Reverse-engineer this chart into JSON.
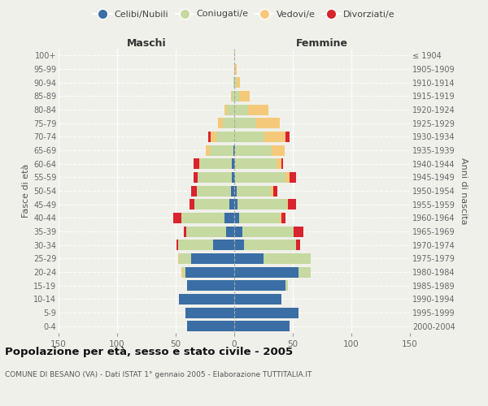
{
  "age_groups": [
    "0-4",
    "5-9",
    "10-14",
    "15-19",
    "20-24",
    "25-29",
    "30-34",
    "35-39",
    "40-44",
    "45-49",
    "50-54",
    "55-59",
    "60-64",
    "65-69",
    "70-74",
    "75-79",
    "80-84",
    "85-89",
    "90-94",
    "95-99",
    "100+"
  ],
  "birth_years": [
    "2000-2004",
    "1995-1999",
    "1990-1994",
    "1985-1989",
    "1980-1984",
    "1975-1979",
    "1970-1974",
    "1965-1969",
    "1960-1964",
    "1955-1959",
    "1950-1954",
    "1945-1949",
    "1940-1944",
    "1935-1939",
    "1930-1934",
    "1925-1929",
    "1920-1924",
    "1915-1919",
    "1910-1914",
    "1905-1909",
    "≤ 1904"
  ],
  "male": {
    "celibe": [
      40,
      42,
      47,
      40,
      42,
      37,
      18,
      7,
      8,
      4,
      3,
      2,
      2,
      1,
      0,
      0,
      0,
      0,
      0,
      0,
      0
    ],
    "coniugato": [
      0,
      0,
      0,
      0,
      2,
      10,
      30,
      34,
      37,
      30,
      29,
      29,
      27,
      20,
      15,
      10,
      6,
      2,
      1,
      0,
      0
    ],
    "vedovo": [
      0,
      0,
      0,
      0,
      1,
      1,
      0,
      0,
      0,
      0,
      0,
      0,
      1,
      3,
      5,
      4,
      2,
      1,
      0,
      0,
      0
    ],
    "divorziato": [
      0,
      0,
      0,
      0,
      0,
      0,
      1,
      2,
      7,
      4,
      5,
      4,
      5,
      0,
      2,
      0,
      0,
      0,
      0,
      0,
      0
    ]
  },
  "female": {
    "nubile": [
      47,
      55,
      40,
      44,
      55,
      25,
      8,
      7,
      4,
      3,
      2,
      1,
      1,
      1,
      0,
      0,
      0,
      0,
      0,
      0,
      0
    ],
    "coniugata": [
      0,
      0,
      0,
      2,
      10,
      40,
      45,
      44,
      35,
      42,
      29,
      43,
      35,
      31,
      26,
      19,
      12,
      4,
      2,
      1,
      0
    ],
    "vedova": [
      0,
      0,
      0,
      0,
      0,
      0,
      0,
      0,
      1,
      1,
      2,
      3,
      4,
      11,
      18,
      20,
      17,
      9,
      3,
      1,
      1
    ],
    "divorziata": [
      0,
      0,
      0,
      0,
      0,
      0,
      3,
      8,
      4,
      7,
      4,
      6,
      2,
      0,
      3,
      0,
      0,
      0,
      0,
      0,
      0
    ]
  },
  "colors": {
    "celibe": "#3a6ea5",
    "coniugato": "#c5d9a0",
    "vedovo": "#f5c97a",
    "divorziato": "#d9232d"
  },
  "xlim": 150,
  "title": "Popolazione per età, sesso e stato civile - 2005",
  "subtitle": "COMUNE DI BESANO (VA) - Dati ISTAT 1° gennaio 2005 - Elaborazione TUTTITALIA.IT",
  "ylabel_left": "Fasce di età",
  "ylabel_right": "Anni di nascita",
  "xlabel_left": "Maschi",
  "xlabel_right": "Femmine",
  "bg_color": "#f0f0eb",
  "plot_bg": "#f0f0eb"
}
